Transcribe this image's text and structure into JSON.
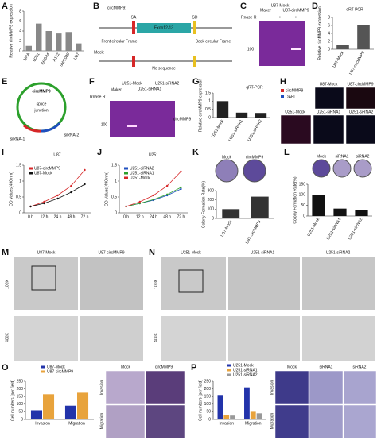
{
  "chart_data": [
    {
      "panel": "A",
      "type": "bar",
      "ylabel": "Relative circMMP9 expression",
      "categories": [
        "NHA",
        "U251",
        "SHG44",
        "A172",
        "SW1088",
        "U87"
      ],
      "values": [
        1,
        5.5,
        4,
        3.5,
        3.8,
        1.5
      ],
      "color": "#888888",
      "ylim": [
        0,
        8
      ],
      "yticks": [
        0,
        2,
        4,
        6,
        8
      ]
    },
    {
      "panel": "D",
      "type": "bar",
      "title": "qRT-PCR",
      "ylabel": "Relative circMMP9 expression",
      "categories": [
        "U87-Mock",
        "U87-circMMP9"
      ],
      "values": [
        1,
        6
      ],
      "color": "#555555",
      "ylim": [
        0,
        8
      ],
      "yticks": [
        0,
        2,
        4,
        6,
        8
      ]
    },
    {
      "panel": "G",
      "type": "bar",
      "title": "qRT-PCR",
      "ylabel": "Relative circMMP9 expression",
      "categories": [
        "U251-Mock",
        "U251-siRNA1",
        "U251-siRNA2"
      ],
      "values": [
        1,
        0.3,
        0.28
      ],
      "color": "#222222",
      "ylim": [
        0,
        1.5
      ],
      "yticks": [
        0,
        0.5,
        1,
        1.5
      ]
    },
    {
      "panel": "I",
      "type": "line",
      "title": "U87",
      "ylabel": "OD Values(490 nm)",
      "x": [
        "0 h",
        "12 h",
        "24 h",
        "48 h",
        "72 h"
      ],
      "series": [
        {
          "name": "U87-circMMP9",
          "color": "#d62728",
          "values": [
            0.2,
            0.35,
            0.55,
            0.85,
            1.35
          ]
        },
        {
          "name": "U87-Mock",
          "color": "#111111",
          "values": [
            0.2,
            0.3,
            0.45,
            0.65,
            0.9
          ]
        }
      ],
      "ylim": [
        0,
        1.5
      ],
      "yticks": [
        0,
        0.5,
        1,
        1.5
      ]
    },
    {
      "panel": "J",
      "type": "line",
      "title": "U251",
      "ylabel": "OD Values(490 nm)",
      "x": [
        "0 h",
        "12 h",
        "24 h",
        "48 h",
        "72 h"
      ],
      "series": [
        {
          "name": "U251-siRNA2",
          "color": "#1f4fbf",
          "values": [
            0.2,
            0.3,
            0.4,
            0.55,
            0.75
          ]
        },
        {
          "name": "U251-siRNA1",
          "color": "#2ca02c",
          "values": [
            0.2,
            0.3,
            0.42,
            0.58,
            0.8
          ]
        },
        {
          "name": "U251-Mock",
          "color": "#d62728",
          "values": [
            0.2,
            0.35,
            0.55,
            0.85,
            1.3
          ]
        }
      ],
      "ylim": [
        0,
        1.5
      ],
      "yticks": [
        0,
        0.5,
        1,
        1.5
      ]
    },
    {
      "panel": "K",
      "type": "bar",
      "ylabel": "Colony Formation Rate(%)",
      "categories": [
        "U87-Mock",
        "U87-circMMP9"
      ],
      "values": [
        100,
        235
      ],
      "color": "#333333",
      "ylim": [
        0,
        300
      ],
      "yticks": [
        0,
        100,
        200,
        300
      ]
    },
    {
      "panel": "L",
      "type": "bar",
      "ylabel": "Colony Formation Rate(%)",
      "categories": [
        "U251-Mock",
        "U251-siRNA1",
        "U251-siRNA2"
      ],
      "values": [
        100,
        35,
        30
      ],
      "color": "#111111",
      "ylim": [
        0,
        150
      ],
      "yticks": [
        0,
        50,
        100,
        150
      ]
    },
    {
      "panel": "O",
      "type": "bar",
      "ylabel": "Cell numbers (per field)",
      "categories": [
        "Invasion",
        "Migration"
      ],
      "series": [
        {
          "name": "U87-Mock",
          "color": "#2233aa",
          "values": [
            60,
            90
          ]
        },
        {
          "name": "U87-circMMP9",
          "color": "#e8a33c",
          "values": [
            165,
            175
          ]
        }
      ],
      "ylim": [
        0,
        250
      ],
      "yticks": [
        0,
        50,
        100,
        150,
        200,
        250
      ]
    },
    {
      "panel": "P",
      "type": "bar",
      "ylabel": "Cell numbers (per field)",
      "categories": [
        "Invasion",
        "Migration"
      ],
      "series": [
        {
          "name": "U251-Mock",
          "color": "#2233aa",
          "values": [
            160,
            210
          ]
        },
        {
          "name": "U251-siRNA1",
          "color": "#e8a33c",
          "values": [
            30,
            50
          ]
        },
        {
          "name": "U251-siRNA2",
          "color": "#999999",
          "values": [
            25,
            40
          ]
        }
      ],
      "ylim": [
        0,
        250
      ],
      "yticks": [
        0,
        50,
        100,
        150,
        200,
        250
      ]
    }
  ],
  "panels": {
    "B": {
      "letter": "B",
      "texts": [
        "circMMP9:",
        "SA",
        "SD",
        "Exon12-13",
        "Front circular Frame",
        "Back circular Frame",
        "Mock:",
        "No sequence"
      ]
    },
    "C": {
      "letter": "C",
      "texts": [
        "Rnase R",
        "Maker",
        "U87-Mock",
        "U87-circMMP9",
        "+",
        "+",
        "100"
      ]
    },
    "E": {
      "letter": "E",
      "texts": [
        "circMMP9",
        "splice",
        "junction",
        "siRNA-1",
        "siRNA-2"
      ]
    },
    "F": {
      "letter": "F",
      "texts": [
        "Rnase R",
        "Maker",
        "U251-Mock",
        "U251-siRNA1",
        "U251-siRNA2",
        "100",
        "circMMP9"
      ]
    },
    "H": {
      "letter": "H",
      "texts": [
        "circMMP9",
        "DAPI",
        "U87-Mock",
        "U87-circMMP9",
        "U251-Mock",
        "U251-siRNA1",
        "U251-siRNA2"
      ]
    },
    "K": {
      "texts": [
        "Mock",
        "circMMP9"
      ]
    },
    "L": {
      "texts": [
        "Mock",
        "siRNA1",
        "siRNA2"
      ]
    },
    "M": {
      "letter": "M",
      "texts": [
        "U87-Mock",
        "U87-circMMP9",
        "100X",
        "400X"
      ]
    },
    "N": {
      "letter": "N",
      "texts": [
        "U251-Mock",
        "U251-siRNA1",
        "U251-siRNA2",
        "100X",
        "400X"
      ]
    },
    "O": {
      "texts": [
        "Mock",
        "circMMP9",
        "Invasion",
        "Migration"
      ]
    },
    "P": {
      "texts": [
        "Mock",
        "siRNA1",
        "siRNA2",
        "Invasion",
        "Migration"
      ]
    }
  }
}
